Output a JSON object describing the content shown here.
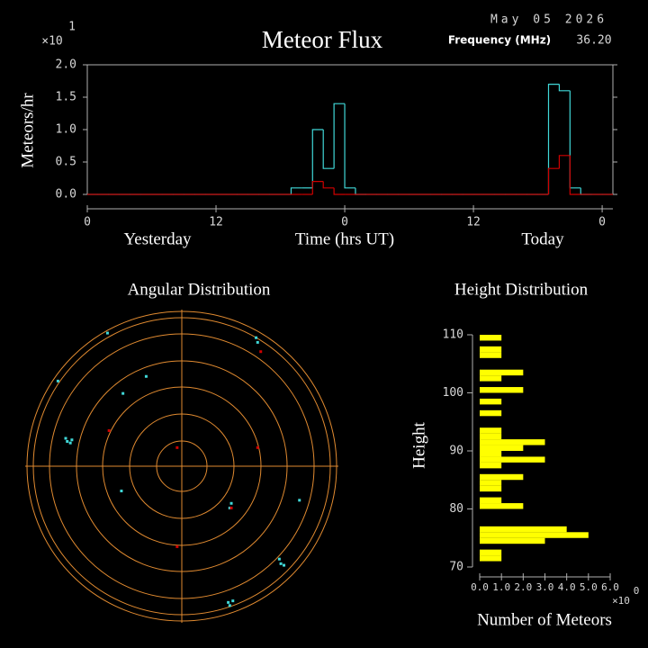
{
  "chart_data": [
    {
      "type": "histogram",
      "title": "Meteor Flux",
      "date": "May 05 2026",
      "frequency_label": "Frequency (MHz)",
      "frequency": "36.20",
      "y_label": "Meteors/hr",
      "y_multiplier": "×10",
      "y_multiplier_exponent": "1",
      "x_label": "Time (hrs UT)",
      "day_labels": [
        "Yesterday",
        "Today"
      ],
      "xlim": [
        0,
        49
      ],
      "xticks": [
        0,
        12,
        {
          "value": 24,
          "label": "0"
        },
        {
          "value": 36,
          "label": "12"
        },
        {
          "value": 48,
          "label": "0"
        }
      ],
      "ylim": [
        0,
        2
      ],
      "yticks": [
        {
          "value": 0,
          "label": "0.0"
        },
        {
          "value": 0.5,
          "label": "0.5"
        },
        {
          "value": 1,
          "label": "1.0"
        },
        {
          "value": 1.5,
          "label": "1.5"
        },
        {
          "value": 2,
          "label": "2.0"
        }
      ],
      "bins": [
        0,
        1,
        2,
        3,
        4,
        5,
        6,
        7,
        8,
        9,
        10,
        11,
        12,
        13,
        14,
        15,
        16,
        17,
        18,
        19,
        20,
        21,
        22,
        23,
        24,
        25,
        26,
        27,
        28,
        29,
        30,
        31,
        32,
        33,
        34,
        35,
        36,
        37,
        38,
        39,
        40,
        41,
        42,
        43,
        44,
        45,
        46,
        47,
        48,
        49
      ],
      "series": [
        {
          "color": "#40d8d8",
          "values": [
            0,
            0,
            0,
            0,
            0,
            0,
            0,
            0,
            0,
            0,
            0,
            0,
            0,
            0,
            0,
            0,
            0,
            0,
            0,
            0.1,
            0.1,
            1.0,
            0.4,
            1.4,
            0.1,
            0,
            0,
            0,
            0,
            0,
            0,
            0,
            0,
            0,
            0,
            0,
            0,
            0,
            0,
            0,
            0,
            0,
            0,
            1.7,
            1.6,
            0.1,
            0,
            0,
            0
          ]
        },
        {
          "color": "#d00000",
          "values": [
            0,
            0,
            0,
            0,
            0,
            0,
            0,
            0,
            0,
            0,
            0,
            0,
            0,
            0,
            0,
            0,
            0,
            0,
            0,
            0,
            0,
            0.2,
            0.1,
            0,
            0,
            0,
            0,
            0,
            0,
            0,
            0,
            0,
            0,
            0,
            0,
            0,
            0,
            0,
            0,
            0,
            0,
            0,
            0,
            0.4,
            0.6,
            0,
            0,
            0,
            0
          ]
        }
      ]
    },
    {
      "type": "polar-scatter",
      "title": "Angular Distribution",
      "xlim": [
        -1,
        1
      ],
      "ylim": [
        -1,
        1
      ],
      "ring_color": "#e08a30",
      "series": [
        {
          "color": "#40d8d8",
          "x": [
            -0.48,
            -0.8,
            -0.74,
            -0.72,
            -0.71,
            -0.75,
            -0.38,
            -0.23,
            0.48,
            0.49,
            -0.39,
            0.32,
            0.31,
            0.76,
            0.63,
            0.64,
            0.66,
            0.3,
            0.31,
            0.33
          ],
          "y": [
            0.86,
            0.55,
            0.16,
            0.15,
            0.17,
            0.18,
            0.47,
            0.58,
            0.83,
            0.8,
            -0.16,
            -0.24,
            -0.27,
            -0.22,
            -0.6,
            -0.63,
            -0.64,
            -0.88,
            -0.9,
            -0.87
          ]
        },
        {
          "color": "#d00000",
          "x": [
            0.51,
            -0.47,
            -0.03,
            0.49,
            0.32,
            -0.03
          ],
          "y": [
            0.74,
            0.23,
            0.12,
            0.12,
            -0.27,
            -0.52
          ]
        }
      ]
    },
    {
      "type": "barh-histogram",
      "title": "Height Distribution",
      "y_label": "Height",
      "x_label": "Number of Meteors",
      "x_multiplier": "×10",
      "x_multiplier_exponent": "0",
      "color": "#ffff00",
      "xlim": [
        0,
        6
      ],
      "xticks": [
        {
          "value": 0,
          "label": "0.0"
        },
        {
          "value": 1,
          "label": "1.0"
        },
        {
          "value": 2,
          "label": "2.0"
        },
        {
          "value": 3,
          "label": "3.0"
        },
        {
          "value": 4,
          "label": "4.0"
        },
        {
          "value": 5,
          "label": "5.0"
        },
        {
          "value": 6,
          "label": "6.0"
        }
      ],
      "ylim": [
        70,
        110
      ],
      "yticks": [
        70,
        80,
        90,
        100,
        110
      ],
      "bins": [
        70,
        71,
        72,
        73,
        74,
        75,
        76,
        77,
        78,
        79,
        80,
        81,
        82,
        83,
        84,
        85,
        86,
        87,
        88,
        89,
        90,
        91,
        92,
        93,
        94,
        95,
        96,
        97,
        98,
        99,
        100,
        101,
        102,
        103,
        104,
        105,
        106,
        107,
        108,
        109,
        110
      ],
      "values": [
        0,
        1,
        1,
        0,
        3,
        5,
        4,
        0,
        0,
        0,
        2,
        1,
        0,
        1,
        1,
        2,
        0,
        1,
        3,
        1,
        2,
        3,
        1,
        1,
        0,
        0,
        1,
        0,
        1,
        0,
        2,
        0,
        1,
        2,
        0,
        0,
        1,
        1,
        0,
        1
      ]
    }
  ]
}
